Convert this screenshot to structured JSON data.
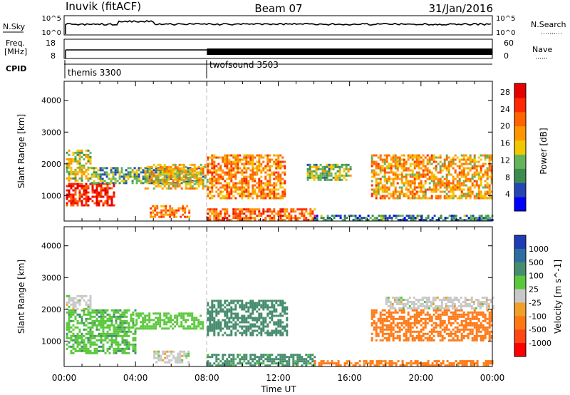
{
  "header": {
    "station": "Inuvik (fitACF)",
    "beam": "Beam 07",
    "date": "31/Jan/2016"
  },
  "strips": {
    "nsky_label": "N.Sky",
    "nsky_ticks": [
      "10^5",
      "10^0"
    ],
    "nsearch_label": "N.Search",
    "freq_label": "Freq.",
    "freq_unit": "[MHz]",
    "freq_ticks": [
      "18",
      "8"
    ],
    "nave_label": "Nave",
    "nave_ticks": [
      "60",
      "0"
    ],
    "cpid_label": "CPID",
    "cpid_entries": [
      "themis 3300",
      "twofsound 3503"
    ]
  },
  "colors": {
    "power": [
      "#0000ff",
      "#2346b4",
      "#3c8c50",
      "#64b45a",
      "#f0c800",
      "#ff9600",
      "#ff6400",
      "#ff2800",
      "#e60000"
    ],
    "velocity": [
      "#1e3cb4",
      "#2d6ea0",
      "#468c6e",
      "#5ac83c",
      "#c8c8c8",
      "#f0a028",
      "#ff7814",
      "#ff4614",
      "#ff0000"
    ]
  },
  "chart_data": [
    {
      "type": "heatmap",
      "title": "",
      "xlabel": "Time UT",
      "ylabel": "Slant Range [km]",
      "x_ticks": [
        "00:00",
        "04:00",
        "08:00",
        "12:00",
        "16:00",
        "20:00",
        "00:00"
      ],
      "y_ticks": [
        1000,
        2000,
        3000,
        4000
      ],
      "xlim": [
        "00:00",
        "24:00"
      ],
      "ylim": [
        200,
        4600
      ],
      "colorbar": {
        "label": "Power [dB]",
        "ticks": [
          4,
          8,
          12,
          16,
          20,
          24,
          28
        ],
        "range": [
          0,
          30
        ]
      },
      "regions": [
        {
          "t0": 0.1,
          "t1": 2.8,
          "r0": 700,
          "r1": 1400,
          "value": 26
        },
        {
          "t0": 0.1,
          "t1": 1.5,
          "r0": 1500,
          "r1": 2450,
          "value": 14
        },
        {
          "t0": 1.5,
          "t1": 7.8,
          "r0": 1400,
          "r1": 1900,
          "value": 10
        },
        {
          "t0": 4.5,
          "t1": 8.0,
          "r0": 1200,
          "r1": 2000,
          "value": 16
        },
        {
          "t0": 8.0,
          "t1": 12.4,
          "r0": 900,
          "r1": 2300,
          "value": 20
        },
        {
          "t0": 8.0,
          "t1": 14.0,
          "r0": 200,
          "r1": 600,
          "value": 22
        },
        {
          "t0": 14.0,
          "t1": 24.0,
          "r0": 200,
          "r1": 400,
          "value": 8
        },
        {
          "t0": 13.6,
          "t1": 16.0,
          "r0": 1500,
          "r1": 2000,
          "value": 12
        },
        {
          "t0": 17.2,
          "t1": 24.0,
          "r0": 900,
          "r1": 2300,
          "value": 18
        },
        {
          "t0": 4.8,
          "t1": 7.0,
          "r0": 300,
          "r1": 700,
          "value": 20
        }
      ]
    },
    {
      "type": "heatmap",
      "title": "",
      "xlabel": "Time UT",
      "ylabel": "Slant Range [km]",
      "x_ticks": [
        "00:00",
        "04:00",
        "08:00",
        "12:00",
        "16:00",
        "20:00",
        "00:00"
      ],
      "y_ticks": [
        1000,
        2000,
        3000,
        4000
      ],
      "xlim": [
        "00:00",
        "24:00"
      ],
      "ylim": [
        200,
        4600
      ],
      "colorbar": {
        "label": "Velocity [m s^-1]",
        "ticks": [
          1000,
          500,
          100,
          25,
          -25,
          -100,
          -500,
          -1000
        ]
      },
      "regions": [
        {
          "t0": 0.1,
          "t1": 4.0,
          "r0": 600,
          "r1": 2000,
          "value": 80
        },
        {
          "t0": 0.1,
          "t1": 1.5,
          "r0": 2000,
          "r1": 2450,
          "value": 0
        },
        {
          "t0": 4.0,
          "t1": 7.8,
          "r0": 1400,
          "r1": 1900,
          "value": 60
        },
        {
          "t0": 8.0,
          "t1": 12.5,
          "r0": 1200,
          "r1": 2300,
          "value": 200
        },
        {
          "t0": 8.0,
          "t1": 14.0,
          "r0": 200,
          "r1": 600,
          "value": 150
        },
        {
          "t0": 5.0,
          "t1": 7.0,
          "r0": 300,
          "r1": 700,
          "value": 0
        },
        {
          "t0": 14.0,
          "t1": 24.0,
          "r0": 200,
          "r1": 400,
          "value": -150
        },
        {
          "t0": 17.2,
          "t1": 24.0,
          "r0": 1000,
          "r1": 2000,
          "value": -300
        },
        {
          "t0": 18.0,
          "t1": 24.0,
          "r0": 2000,
          "r1": 2400,
          "value": 0
        }
      ]
    }
  ]
}
